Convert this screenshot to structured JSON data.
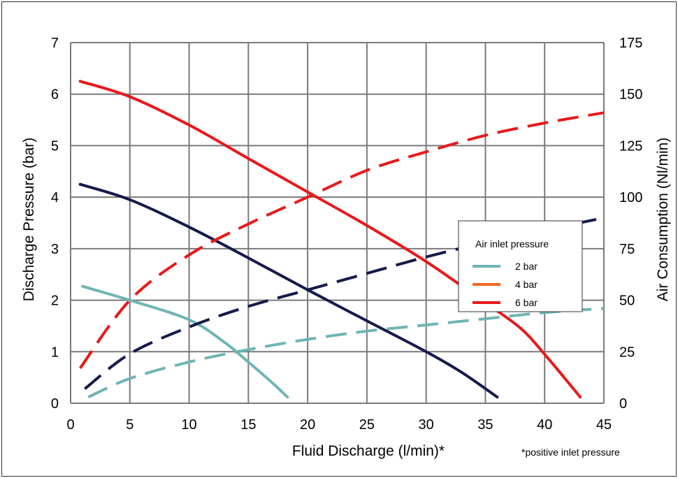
{
  "chart_data": {
    "type": "line",
    "xlabel": "Fluid Discharge (l/min)*",
    "ylabel": "Discharge Pressure (bar)",
    "y2label": "Air Consumption (Nl/min)",
    "footnote": "*positive inlet pressure",
    "xlim": [
      0,
      45
    ],
    "ylim": [
      0,
      7
    ],
    "y2lim": [
      0,
      175
    ],
    "x_ticks": [
      0,
      5,
      10,
      15,
      20,
      25,
      30,
      35,
      40,
      45
    ],
    "y_ticks": [
      0,
      1,
      2,
      3,
      4,
      5,
      6,
      7
    ],
    "y2_ticks": [
      0,
      25,
      50,
      75,
      100,
      125,
      150,
      175
    ],
    "grid": true,
    "legend": {
      "title": "Air inlet pressure",
      "placement": "right",
      "entries": [
        {
          "label": "2 bar",
          "color": "#6fb5b5"
        },
        {
          "label": "4 bar",
          "color": "#f26522"
        },
        {
          "label": "6 bar",
          "color": "#e8181b"
        }
      ]
    },
    "series": [
      {
        "legend_index": 0,
        "kind": "discharge_pressure",
        "axis": "left",
        "style": "solid",
        "color": "#6fb5b5",
        "x": [
          1,
          5,
          10,
          13,
          15,
          17,
          18.3
        ],
        "y": [
          2.27,
          2.0,
          1.62,
          1.18,
          0.8,
          0.4,
          0.12
        ]
      },
      {
        "legend_index": 0,
        "kind": "air_consumption",
        "axis": "right",
        "style": "dashed",
        "color": "#6fb5b5",
        "x": [
          1.5,
          5,
          10,
          15,
          20,
          25,
          30,
          35,
          40,
          45
        ],
        "y": [
          3,
          12,
          20,
          26,
          31,
          35,
          38,
          41,
          44,
          46
        ]
      },
      {
        "kind": "discharge_pressure",
        "axis": "left",
        "style": "solid",
        "color": "#141a4a",
        "x": [
          0.8,
          5,
          10,
          15,
          20,
          25,
          30,
          33,
          36
        ],
        "y": [
          4.25,
          3.95,
          3.42,
          2.82,
          2.2,
          1.6,
          1.0,
          0.6,
          0.12
        ]
      },
      {
        "kind": "air_consumption",
        "axis": "right",
        "style": "dashed",
        "color": "#141a4a",
        "x": [
          1.2,
          5,
          10,
          15,
          20,
          25,
          30,
          35,
          40,
          45
        ],
        "y": [
          7,
          24,
          37,
          47,
          55,
          63,
          71,
          78,
          84,
          90
        ]
      },
      {
        "legend_index": 2,
        "kind": "discharge_pressure",
        "axis": "left",
        "style": "solid",
        "color": "#e8181b",
        "x": [
          0.8,
          5,
          10,
          15,
          20,
          25,
          30,
          35,
          38,
          40,
          42,
          43
        ],
        "y": [
          6.25,
          5.95,
          5.4,
          4.75,
          4.1,
          3.45,
          2.75,
          1.95,
          1.45,
          0.95,
          0.4,
          0.12
        ]
      },
      {
        "legend_index": 2,
        "kind": "air_consumption",
        "axis": "right",
        "style": "dashed",
        "color": "#e8181b",
        "x": [
          0.8,
          5,
          10,
          15,
          20,
          25,
          30,
          35,
          40,
          45
        ],
        "y": [
          17,
          50,
          72,
          87,
          100,
          113,
          122,
          130,
          136,
          141
        ]
      }
    ]
  }
}
